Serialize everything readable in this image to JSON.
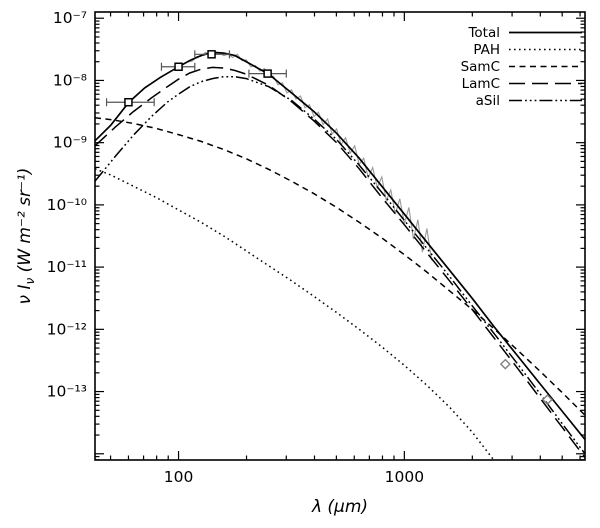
{
  "figure": {
    "background": "#ffffff",
    "frame_color": "#000000"
  },
  "chart_data": {
    "type": "line",
    "title": "",
    "x_axis": {
      "label": "λ (μm)",
      "scale": "log",
      "range_log10": [
        1.63,
        3.8
      ],
      "major_ticks_um": [
        100,
        1000
      ],
      "tick_labels": [
        "100",
        "1000"
      ]
    },
    "y_axis": {
      "label_pre": "ν I",
      "label_sub": "ν",
      "label_post": " (W m⁻² sr⁻¹)",
      "scale": "log",
      "range_log10": [
        -14.1,
        -6.9
      ],
      "major_tick_exponents": [
        -7,
        -8,
        -9,
        -10,
        -11,
        -12,
        -13,
        -14
      ],
      "tick_labels": [
        "10⁻⁷",
        "10⁻⁸",
        "10⁻⁹",
        "10⁻¹⁰",
        "10⁻¹¹",
        "10⁻¹²",
        "10⁻¹³"
      ]
    },
    "legend": {
      "position": "top-right",
      "entries": [
        {
          "label": "Total",
          "series": "total"
        },
        {
          "label": "PAH",
          "series": "pah"
        },
        {
          "label": "SamC",
          "series": "samc"
        },
        {
          "label": "LamC",
          "series": "lamc"
        },
        {
          "label": "aSil",
          "series": "asil"
        }
      ]
    },
    "series": [
      {
        "key": "total",
        "label": "Total",
        "style": "solid",
        "color": "#000000",
        "points_log10": [
          [
            1.63,
            -8.97
          ],
          [
            1.7,
            -8.72
          ],
          [
            1.78,
            -8.35
          ],
          [
            1.85,
            -8.12
          ],
          [
            1.92,
            -7.95
          ],
          [
            2.0,
            -7.78
          ],
          [
            2.05,
            -7.68
          ],
          [
            2.1,
            -7.6
          ],
          [
            2.15,
            -7.55
          ],
          [
            2.2,
            -7.56
          ],
          [
            2.25,
            -7.6
          ],
          [
            2.3,
            -7.7
          ],
          [
            2.35,
            -7.8
          ],
          [
            2.4,
            -7.9
          ],
          [
            2.45,
            -8.05
          ],
          [
            2.5,
            -8.2
          ],
          [
            2.55,
            -8.35
          ],
          [
            2.6,
            -8.5
          ],
          [
            2.7,
            -8.85
          ],
          [
            2.8,
            -9.25
          ],
          [
            2.9,
            -9.7
          ],
          [
            3.0,
            -10.15
          ],
          [
            3.1,
            -10.6
          ],
          [
            3.2,
            -11.05
          ],
          [
            3.3,
            -11.5
          ],
          [
            3.4,
            -11.97
          ],
          [
            3.5,
            -12.42
          ],
          [
            3.6,
            -12.87
          ],
          [
            3.7,
            -13.32
          ],
          [
            3.8,
            -13.77
          ]
        ]
      },
      {
        "key": "pah",
        "label": "PAH",
        "style": "dotted",
        "color": "#000000",
        "points_log10": [
          [
            1.63,
            -9.42
          ],
          [
            1.7,
            -9.52
          ],
          [
            1.8,
            -9.7
          ],
          [
            1.9,
            -9.88
          ],
          [
            2.0,
            -10.08
          ],
          [
            2.1,
            -10.28
          ],
          [
            2.2,
            -10.5
          ],
          [
            2.3,
            -10.74
          ],
          [
            2.4,
            -10.98
          ],
          [
            2.5,
            -11.22
          ],
          [
            2.6,
            -11.47
          ],
          [
            2.7,
            -11.73
          ],
          [
            2.8,
            -12.0
          ],
          [
            2.9,
            -12.28
          ],
          [
            3.0,
            -12.58
          ],
          [
            3.1,
            -12.9
          ],
          [
            3.2,
            -13.25
          ],
          [
            3.3,
            -13.65
          ],
          [
            3.4,
            -14.12
          ],
          [
            3.46,
            -14.45
          ]
        ]
      },
      {
        "key": "samc",
        "label": "SamC",
        "style": "short-dash",
        "color": "#000000",
        "points_log10": [
          [
            1.63,
            -8.6
          ],
          [
            1.7,
            -8.63
          ],
          [
            1.8,
            -8.69
          ],
          [
            1.9,
            -8.77
          ],
          [
            2.0,
            -8.87
          ],
          [
            2.1,
            -8.98
          ],
          [
            2.2,
            -9.11
          ],
          [
            2.3,
            -9.26
          ],
          [
            2.4,
            -9.43
          ],
          [
            2.5,
            -9.62
          ],
          [
            2.6,
            -9.82
          ],
          [
            2.7,
            -10.04
          ],
          [
            2.8,
            -10.28
          ],
          [
            2.9,
            -10.53
          ],
          [
            3.0,
            -10.8
          ],
          [
            3.1,
            -11.08
          ],
          [
            3.2,
            -11.38
          ],
          [
            3.3,
            -11.68
          ],
          [
            3.4,
            -12.0
          ],
          [
            3.5,
            -12.33
          ],
          [
            3.6,
            -12.67
          ],
          [
            3.7,
            -13.02
          ],
          [
            3.8,
            -13.38
          ]
        ]
      },
      {
        "key": "lamc",
        "label": "LamC",
        "style": "long-dash",
        "color": "#000000",
        "points_log10": [
          [
            1.63,
            -9.05
          ],
          [
            1.72,
            -8.75
          ],
          [
            1.8,
            -8.5
          ],
          [
            1.88,
            -8.28
          ],
          [
            1.95,
            -8.1
          ],
          [
            2.0,
            -7.98
          ],
          [
            2.05,
            -7.88
          ],
          [
            2.1,
            -7.82
          ],
          [
            2.15,
            -7.79
          ],
          [
            2.2,
            -7.8
          ],
          [
            2.25,
            -7.84
          ],
          [
            2.3,
            -7.9
          ],
          [
            2.4,
            -8.08
          ],
          [
            2.5,
            -8.34
          ],
          [
            2.6,
            -8.65
          ],
          [
            2.7,
            -9.0
          ],
          [
            2.8,
            -9.42
          ],
          [
            2.9,
            -9.88
          ],
          [
            3.0,
            -10.32
          ],
          [
            3.1,
            -10.77
          ],
          [
            3.2,
            -11.22
          ],
          [
            3.3,
            -11.68
          ],
          [
            3.4,
            -12.15
          ],
          [
            3.5,
            -12.62
          ],
          [
            3.6,
            -13.1
          ],
          [
            3.7,
            -13.58
          ],
          [
            3.8,
            -14.06
          ]
        ]
      },
      {
        "key": "asil",
        "label": "aSil",
        "style": "dash-dot-dot-dot",
        "color": "#000000",
        "points_log10": [
          [
            1.63,
            -9.62
          ],
          [
            1.72,
            -9.22
          ],
          [
            1.8,
            -8.88
          ],
          [
            1.88,
            -8.58
          ],
          [
            1.95,
            -8.35
          ],
          [
            2.0,
            -8.22
          ],
          [
            2.05,
            -8.1
          ],
          [
            2.1,
            -8.02
          ],
          [
            2.15,
            -7.97
          ],
          [
            2.2,
            -7.94
          ],
          [
            2.25,
            -7.94
          ],
          [
            2.3,
            -7.97
          ],
          [
            2.4,
            -8.1
          ],
          [
            2.5,
            -8.32
          ],
          [
            2.6,
            -8.62
          ],
          [
            2.7,
            -8.95
          ],
          [
            2.8,
            -9.36
          ],
          [
            2.9,
            -9.8
          ],
          [
            3.0,
            -10.25
          ],
          [
            3.1,
            -10.7
          ],
          [
            3.2,
            -11.15
          ],
          [
            3.3,
            -11.62
          ],
          [
            3.4,
            -12.08
          ],
          [
            3.5,
            -12.55
          ],
          [
            3.6,
            -13.03
          ],
          [
            3.7,
            -13.52
          ],
          [
            3.8,
            -14.0
          ]
        ]
      }
    ],
    "observed_spectrum": {
      "name": "grey-noisy-spectrum",
      "color": "#9a9a9a",
      "points_log10": [
        [
          2.04,
          -7.7
        ],
        [
          2.06,
          -7.69
        ],
        [
          2.08,
          -7.62
        ],
        [
          2.1,
          -7.61
        ],
        [
          2.12,
          -7.55
        ],
        [
          2.14,
          -7.59
        ],
        [
          2.16,
          -7.55
        ],
        [
          2.18,
          -7.55
        ],
        [
          2.2,
          -7.6
        ],
        [
          2.22,
          -7.58
        ],
        [
          2.24,
          -7.63
        ],
        [
          2.26,
          -7.58
        ],
        [
          2.28,
          -7.68
        ],
        [
          2.3,
          -7.67
        ],
        [
          2.32,
          -7.78
        ],
        [
          2.34,
          -7.76
        ],
        [
          2.36,
          -7.85
        ],
        [
          2.38,
          -7.81
        ],
        [
          2.4,
          -7.94
        ],
        [
          2.42,
          -7.93
        ],
        [
          2.44,
          -8.07
        ],
        [
          2.46,
          -8.04
        ],
        [
          2.48,
          -8.2
        ],
        [
          2.5,
          -8.15
        ],
        [
          2.52,
          -8.3
        ],
        [
          2.54,
          -8.25
        ],
        [
          2.56,
          -8.44
        ],
        [
          2.58,
          -8.39
        ],
        [
          2.6,
          -8.58
        ],
        [
          2.62,
          -8.51
        ],
        [
          2.64,
          -8.71
        ],
        [
          2.66,
          -8.62
        ],
        [
          2.68,
          -8.86
        ],
        [
          2.7,
          -8.78
        ],
        [
          2.72,
          -9.03
        ],
        [
          2.74,
          -8.92
        ],
        [
          2.76,
          -9.17
        ],
        [
          2.78,
          -9.05
        ],
        [
          2.8,
          -9.35
        ],
        [
          2.82,
          -9.25
        ],
        [
          2.84,
          -9.56
        ],
        [
          2.86,
          -9.4
        ],
        [
          2.88,
          -9.72
        ],
        [
          2.9,
          -9.55
        ],
        [
          2.92,
          -9.93
        ],
        [
          2.94,
          -9.76
        ],
        [
          2.96,
          -10.15
        ],
        [
          2.98,
          -9.9
        ],
        [
          3.0,
          -10.3
        ],
        [
          3.02,
          -10.04
        ],
        [
          3.04,
          -10.55
        ],
        [
          3.06,
          -10.24
        ],
        [
          3.08,
          -10.76
        ],
        [
          3.1,
          -10.38
        ],
        [
          3.12,
          -10.89
        ]
      ]
    },
    "photometry_squares": {
      "marker": "square",
      "color": "#000000",
      "errorbar_color": "#555555",
      "points": [
        {
          "lam_um": 60,
          "nu_inu_log10": -8.35,
          "band_lo_um": 48,
          "band_hi_um": 78
        },
        {
          "lam_um": 100,
          "nu_inu_log10": -7.78,
          "band_lo_um": 84,
          "band_hi_um": 118
        },
        {
          "lam_um": 140,
          "nu_inu_log10": -7.58,
          "band_lo_um": 118,
          "band_hi_um": 168
        },
        {
          "lam_um": 248,
          "nu_inu_log10": -7.89,
          "band_lo_um": 205,
          "band_hi_um": 300
        }
      ]
    },
    "photometry_diamonds": {
      "marker": "diamond",
      "color": "#808080",
      "points": [
        {
          "lam_um": 2800,
          "nu_inu_log10": -12.56
        },
        {
          "lam_um": 4300,
          "nu_inu_log10": -13.13
        }
      ]
    }
  }
}
